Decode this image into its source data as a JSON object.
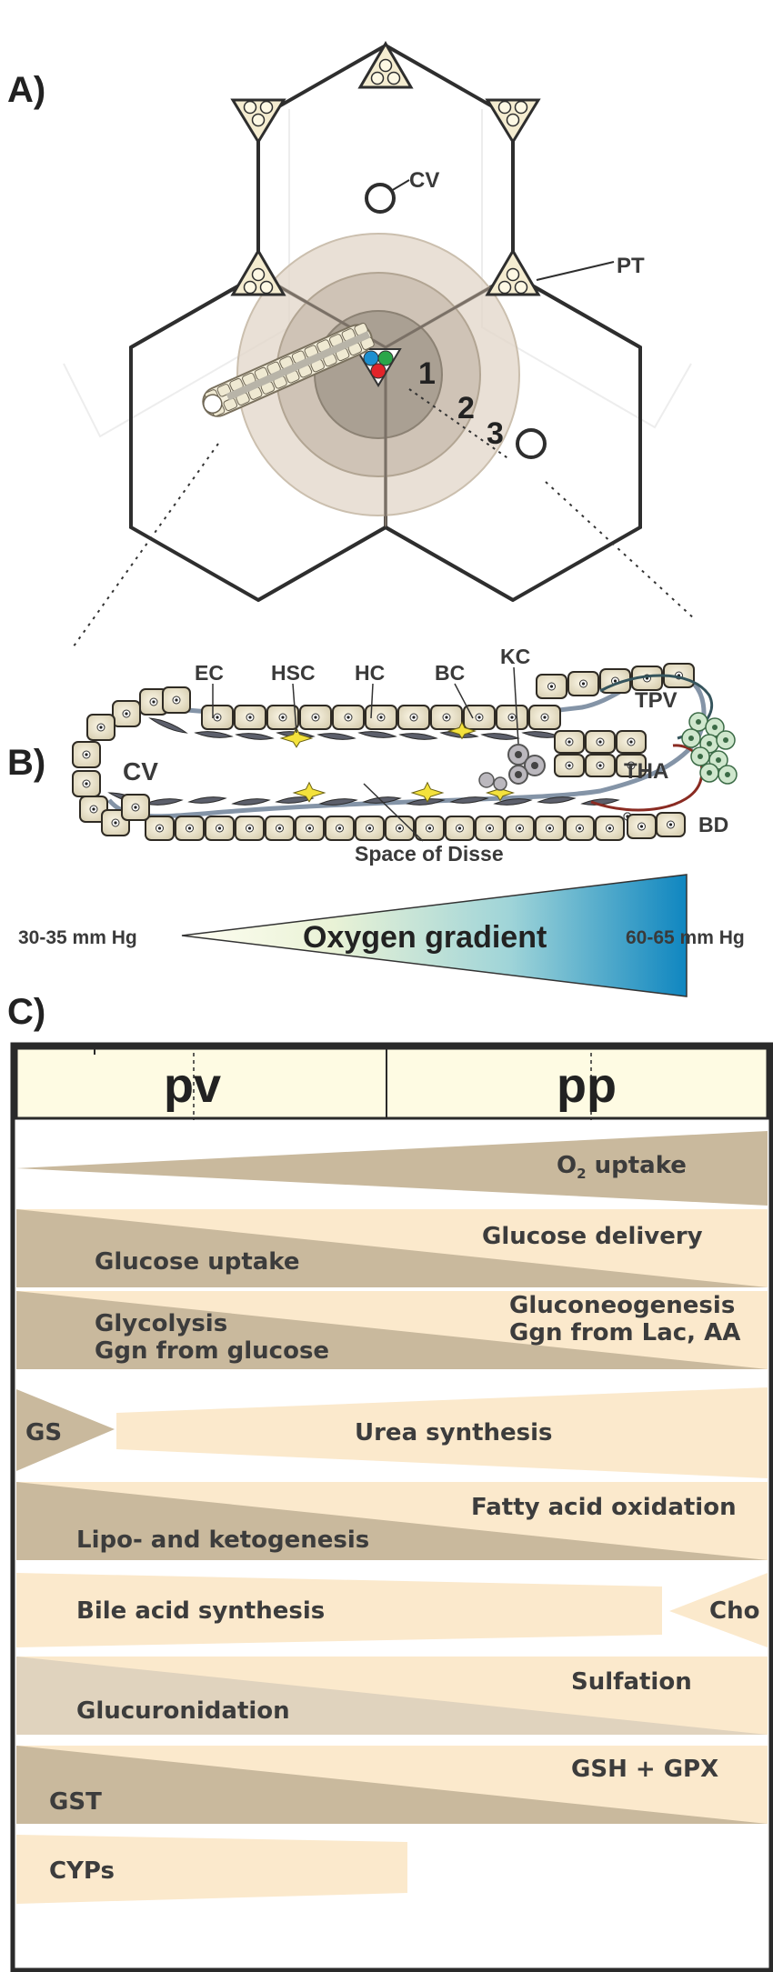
{
  "panels": {
    "a": "A)",
    "b": "B)",
    "c": "C)"
  },
  "panel_a": {
    "cv_label": "CV",
    "pt_label": "PT",
    "zone_numbers": [
      "1",
      "2",
      "3"
    ]
  },
  "panel_b": {
    "cv": "CV",
    "ec": "EC",
    "hsc": "HSC",
    "hc": "HC",
    "bc": "BC",
    "kc": "KC",
    "tpv": "TPV",
    "tha": "THA",
    "bd": "BD",
    "disse": "Space of Disse"
  },
  "oxygen": {
    "left": "30-35 mm Hg",
    "title": "Oxygen gradient",
    "right": "60-65 mm Hg"
  },
  "panel_c": {
    "pv": "pv",
    "pp": "pp",
    "rows": {
      "o2": {
        "main": "O",
        "sub": "2",
        "rest": " uptake"
      },
      "glucose_delivery": "Glucose delivery",
      "glucose_uptake": "Glucose uptake",
      "gluconeogenesis": "Gluconeogenesis",
      "ggn_lac": "Ggn from Lac, AA",
      "glycolysis": "Glycolysis",
      "ggn_glucose": "Ggn from glucose",
      "gs": "GS",
      "urea": "Urea synthesis",
      "fatty_acid": "Fatty acid oxidation",
      "lipo": "Lipo-  and ketogenesis",
      "bile": "Bile acid synthesis",
      "cho": "Cho",
      "sulfation": "Sulfation",
      "glucuronidation": "Glucuronidation",
      "gsh": "GSH + GPX",
      "gst": "GST",
      "cyps": "CYPs"
    }
  },
  "colors": {
    "tan": "#c9b99d",
    "cream": "#fbe9cc",
    "header": "#fefbe3",
    "oxygen_blue": "#1b8ec1"
  }
}
